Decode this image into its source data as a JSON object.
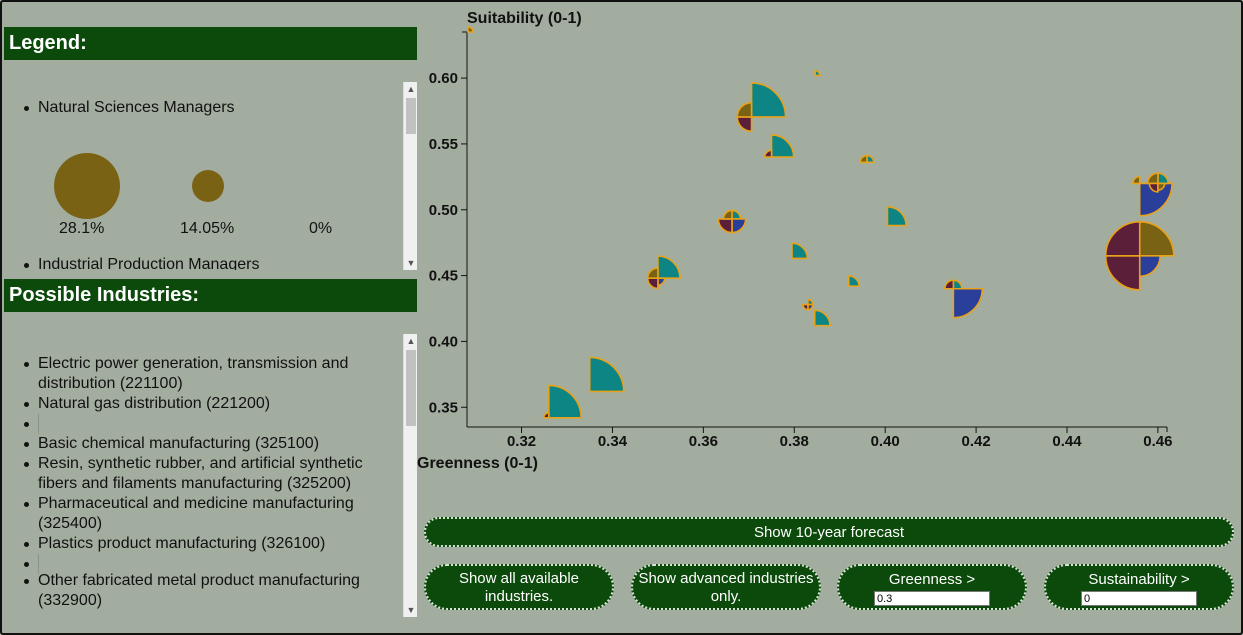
{
  "legend": {
    "title": "Legend:",
    "occupations": [
      "Natural Sciences Managers",
      "Industrial Production Managers"
    ],
    "circle_labels": [
      "28.1%",
      "14.05%",
      "0%"
    ],
    "circle_color": "#7a6214"
  },
  "industries": {
    "title": "Possible Industries:",
    "items": [
      "Electric power generation, transmission and distribution (221100)",
      "Natural gas distribution (221200)",
      "Basic chemical manufacturing (325100)",
      "Resin, synthetic rubber, and artificial synthetic fibers and filaments manufacturing (325200)",
      "Pharmaceutical and medicine manufacturing (325400)",
      "Plastics product manufacturing (326100)",
      "Other fabricated metal product manufacturing (332900)"
    ]
  },
  "chart_data": {
    "type": "scatter",
    "xlabel": "Greenness (0-1)",
    "ylabel": "Suitability (0-1)",
    "xlim": [
      0.308,
      0.462
    ],
    "ylim": [
      0.335,
      0.635
    ],
    "x_ticks": [
      "0.32",
      "0.34",
      "0.36",
      "0.38",
      "0.40",
      "0.42",
      "0.44",
      "0.46"
    ],
    "y_ticks": [
      "0.35",
      "0.40",
      "0.45",
      "0.50",
      "0.55",
      "0.60"
    ],
    "x_tick_values": [
      0.32,
      0.34,
      0.36,
      0.38,
      0.4,
      0.42,
      0.44,
      0.46
    ],
    "y_tick_values": [
      0.35,
      0.4,
      0.45,
      0.5,
      0.55,
      0.6
    ],
    "colors": {
      "teal": "#0e8585",
      "navy": "#2a3f99",
      "maroon": "#5c1f3a",
      "olive": "#7a6214",
      "border": "#e8a21a"
    },
    "points": [
      {
        "x": 0.3706,
        "y": 0.5705,
        "wedges": [
          [
            "teal",
            0,
            90,
            1.0
          ],
          [
            "maroon",
            180,
            270,
            0.42
          ],
          [
            "olive",
            270,
            360,
            0.42
          ]
        ]
      },
      {
        "x": 0.375,
        "y": 0.54,
        "wedges": [
          [
            "teal",
            0,
            90,
            0.65
          ],
          [
            "maroon",
            270,
            360,
            0.2
          ]
        ]
      },
      {
        "x": 0.396,
        "y": 0.536,
        "wedges": [
          [
            "teal",
            0,
            90,
            0.2
          ],
          [
            "olive",
            270,
            360,
            0.2
          ]
        ]
      },
      {
        "x": 0.3846,
        "y": 0.602,
        "wedges": [
          [
            "teal",
            0,
            90,
            0.14
          ]
        ]
      },
      {
        "x": 0.3663,
        "y": 0.493,
        "wedges": [
          [
            "teal",
            0,
            90,
            0.25
          ],
          [
            "navy",
            90,
            180,
            0.4
          ],
          [
            "maroon",
            180,
            270,
            0.4
          ],
          [
            "olive",
            270,
            360,
            0.25
          ]
        ]
      },
      {
        "x": 0.4005,
        "y": 0.488,
        "wedges": [
          [
            "teal",
            0,
            90,
            0.55
          ]
        ]
      },
      {
        "x": 0.3795,
        "y": 0.463,
        "wedges": [
          [
            "teal",
            0,
            90,
            0.45
          ]
        ]
      },
      {
        "x": 0.392,
        "y": 0.442,
        "wedges": [
          [
            "teal",
            0,
            90,
            0.3
          ]
        ]
      },
      {
        "x": 0.35,
        "y": 0.448,
        "wedges": [
          [
            "teal",
            0,
            90,
            0.65
          ],
          [
            "navy",
            90,
            180,
            0.2
          ],
          [
            "maroon",
            180,
            270,
            0.3
          ],
          [
            "olive",
            270,
            360,
            0.3
          ]
        ]
      },
      {
        "x": 0.383,
        "y": 0.428,
        "wedges": [
          [
            "teal",
            0,
            90,
            0.15
          ],
          [
            "navy",
            90,
            180,
            0.15
          ],
          [
            "maroon",
            180,
            270,
            0.15
          ]
        ]
      },
      {
        "x": 0.3845,
        "y": 0.412,
        "wedges": [
          [
            "teal",
            0,
            90,
            0.45
          ]
        ]
      },
      {
        "x": 0.415,
        "y": 0.44,
        "wedges": [
          [
            "teal",
            0,
            90,
            0.25
          ],
          [
            "navy",
            90,
            180,
            0.85
          ],
          [
            "maroon",
            270,
            360,
            0.25
          ]
        ]
      },
      {
        "x": 0.456,
        "y": 0.52,
        "wedges": [
          [
            "navy",
            90,
            180,
            0.95
          ],
          [
            "olive",
            270,
            360,
            0.2
          ]
        ]
      },
      {
        "x": 0.46,
        "y": 0.52,
        "wedges": [
          [
            "teal",
            0,
            90,
            0.3
          ],
          [
            "olive",
            270,
            360,
            0.3
          ],
          [
            "maroon",
            180,
            270,
            0.25
          ],
          [
            "olive",
            90,
            180,
            0.2
          ]
        ]
      },
      {
        "x": 0.456,
        "y": 0.465,
        "wedges": [
          [
            "olive",
            0,
            90,
            1.0
          ],
          [
            "navy",
            90,
            180,
            0.6
          ],
          [
            "maroon",
            180,
            270,
            1.0
          ],
          [
            "maroon",
            270,
            360,
            1.0
          ]
        ]
      },
      {
        "x": 0.326,
        "y": 0.342,
        "wedges": [
          [
            "teal",
            0,
            90,
            0.95
          ],
          [
            "maroon",
            270,
            360,
            0.15
          ]
        ]
      },
      {
        "x": 0.335,
        "y": 0.362,
        "wedges": [
          [
            "teal",
            0,
            90,
            1.0
          ]
        ]
      },
      {
        "x": 0.3082,
        "y": 0.635,
        "wedges": [
          [
            "olive",
            0,
            90,
            0.15
          ]
        ]
      }
    ]
  },
  "buttons": {
    "forecast": "Show 10-year forecast",
    "show_all": "Show all available industries.",
    "advanced": "Show advanced industries only."
  },
  "filters": {
    "greenness_label": "Greenness >",
    "greenness_value": "0.3",
    "sustainability_label": "Sustainability >",
    "sustainability_value": "0"
  }
}
